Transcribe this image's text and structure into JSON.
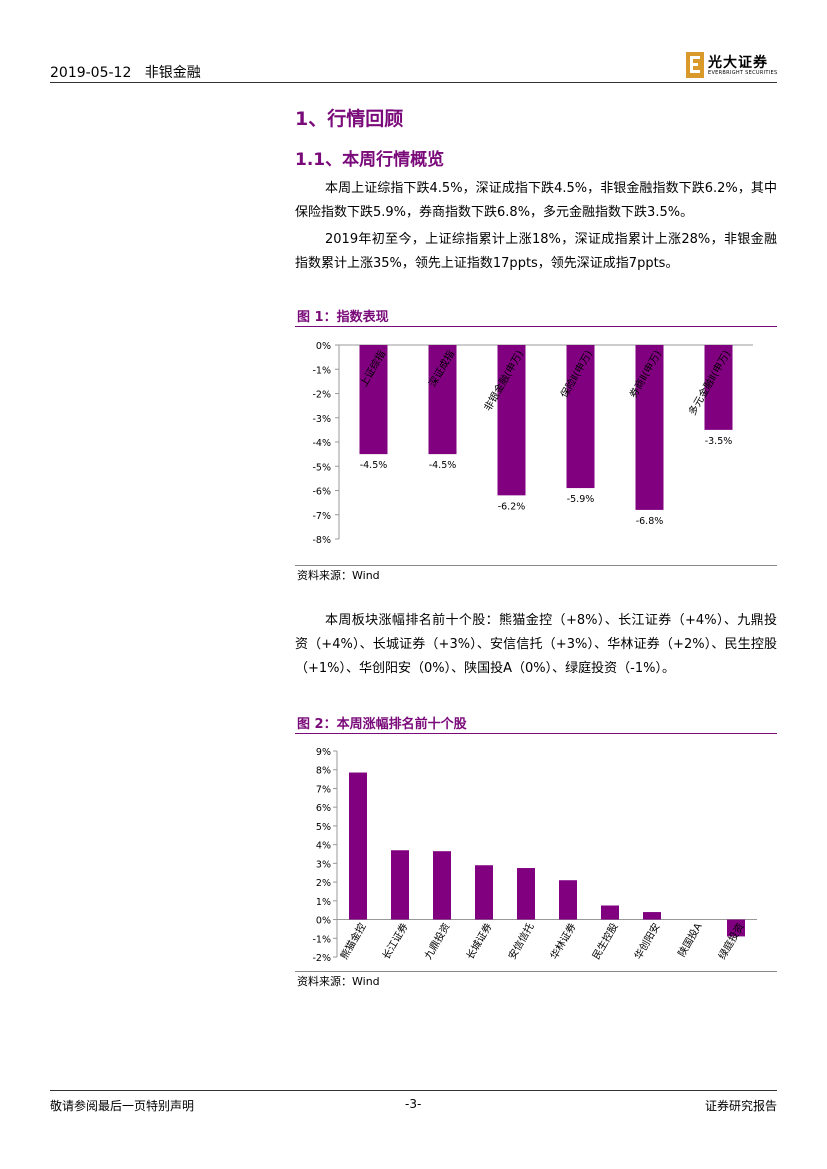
{
  "header": {
    "date": "2019-05-12",
    "sector": "非银金融"
  },
  "logo": {
    "name_cn": "光大证券",
    "name_en": "EVERBRIGHT SECURITIES"
  },
  "section": {
    "h1": "1、行情回顾",
    "h2": "1.1、本周行情概览"
  },
  "paragraphs": [
    "本周上证综指下跌4.5%，深证成指下跌4.5%，非银金融指数下跌6.2%，其中保险指数下跌5.9%，券商指数下跌6.8%，多元金融指数下跌3.5%。",
    "2019年初至今，上证综指累计上涨18%，深证成指累计上涨28%，非银金融指数累计上涨35%，领先上证指数17ppts，领先深证成指7ppts。",
    "本周板块涨幅排名前十个股：熊猫金控（+8%）、长江证券（+4%）、九鼎投资（+4%）、长城证券（+3%）、安信信托（+3%）、华林证券（+2%）、民生控股（+1%）、华创阳安（0%）、陕国投A（0%）、绿庭投资（-1%）。"
  ],
  "figure1": {
    "title": "图 1：指数表现",
    "source": "资料来源：Wind"
  },
  "figure2": {
    "title": "图 2：本周涨幅排名前十个股",
    "source": "资料来源：Wind"
  },
  "chart_data": [
    {
      "type": "bar",
      "title": "",
      "categories": [
        "上证综指",
        "深证成指",
        "非银金融(申万)",
        "保险Ⅱ(申万)",
        "券商Ⅱ(申万)",
        "多元金融Ⅱ(申万)"
      ],
      "values": [
        -4.5,
        -4.5,
        -6.2,
        -5.9,
        -6.8,
        -3.5
      ],
      "data_labels": [
        "-4.5%",
        "-4.5%",
        "-6.2%",
        "-5.9%",
        "-6.8%",
        "-3.5%"
      ],
      "ylim": [
        -8,
        0
      ],
      "yticks": [
        "0%",
        "-1%",
        "-2%",
        "-3%",
        "-4%",
        "-5%",
        "-6%",
        "-7%",
        "-8%"
      ],
      "bar_color": "#800080",
      "grid": false
    },
    {
      "type": "bar",
      "title": "",
      "categories": [
        "熊猫金控",
        "长江证券",
        "九鼎投资",
        "长城证券",
        "安信信托",
        "华林证券",
        "民生控股",
        "华创阳安",
        "陕国投A",
        "绿庭投资"
      ],
      "values": [
        7.85,
        3.7,
        3.65,
        2.9,
        2.75,
        2.1,
        0.75,
        0.4,
        0.0,
        -0.9
      ],
      "ylim": [
        -2,
        9
      ],
      "yticks": [
        "9%",
        "8%",
        "7%",
        "6%",
        "5%",
        "4%",
        "3%",
        "2%",
        "1%",
        "0%",
        "-1%",
        "-2%"
      ],
      "bar_color": "#800080",
      "grid": false
    }
  ],
  "footer": {
    "disclaimer": "敬请参阅最后一页特别声明",
    "page": "-3-",
    "doc_type": "证券研究报告"
  }
}
